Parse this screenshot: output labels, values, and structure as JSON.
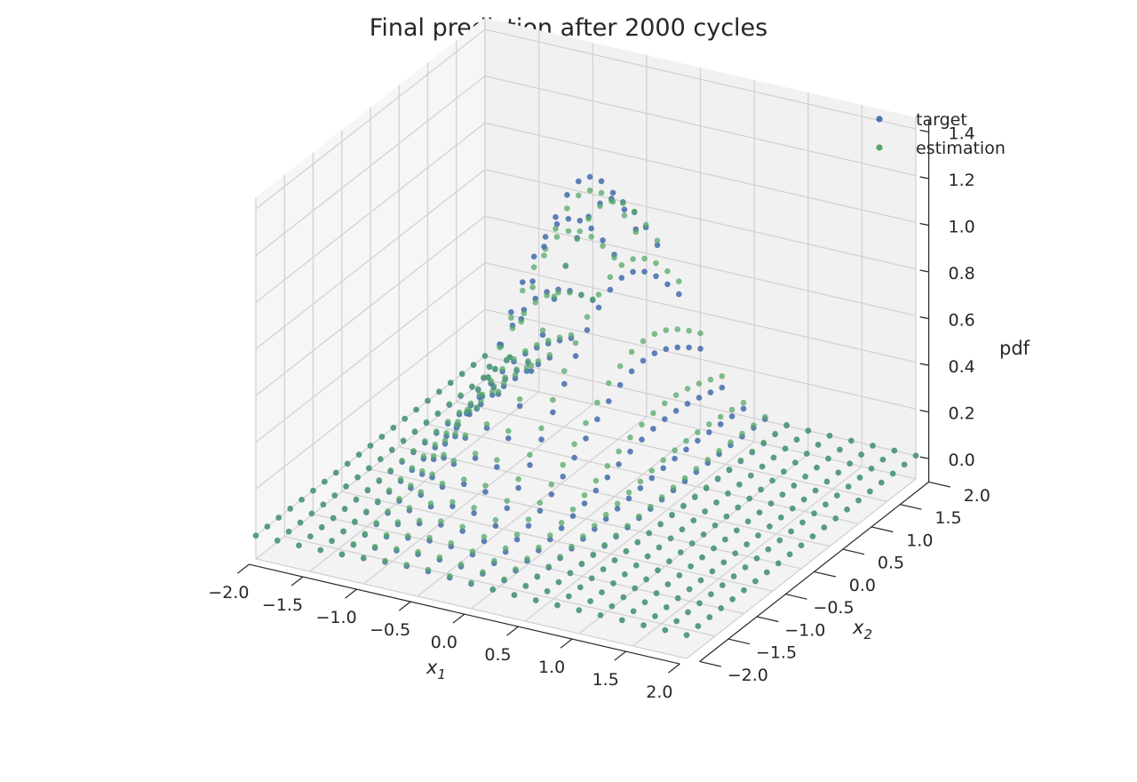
{
  "chart_data": {
    "type": "scatter3d",
    "title": "Final prediction after 2000 cycles",
    "xlabel": "x1",
    "xlabel_main": "x",
    "xlabel_sub": "1",
    "ylabel": "x2",
    "ylabel_main": "x",
    "ylabel_sub": "2",
    "zlabel": "pdf",
    "xlim": [
      -2.0,
      2.0
    ],
    "ylim": [
      -2.0,
      2.0
    ],
    "zlim": [
      -0.1,
      1.45
    ],
    "x_ticks": [
      -2.0,
      -1.5,
      -1.0,
      -0.5,
      0.0,
      0.5,
      1.0,
      1.5,
      2.0
    ],
    "x_tick_labels": [
      "−2.0",
      "−1.5",
      "−1.0",
      "−0.5",
      "0.0",
      "0.5",
      "1.0",
      "1.5",
      "2.0"
    ],
    "y_ticks": [
      -2.0,
      -1.5,
      -1.0,
      -0.5,
      0.0,
      0.5,
      1.0,
      1.5,
      2.0
    ],
    "y_tick_labels": [
      "−2.0",
      "−1.5",
      "−1.0",
      "−0.5",
      "0.0",
      "0.5",
      "1.0",
      "1.5",
      "2.0"
    ],
    "z_ticks": [
      0.0,
      0.2,
      0.4,
      0.6,
      0.8,
      1.0,
      1.2,
      1.4
    ],
    "z_tick_labels": [
      "0.0",
      "0.2",
      "0.4",
      "0.6",
      "0.8",
      "1.0",
      "1.2",
      "1.4"
    ],
    "grid": true,
    "legend_position": "top-right",
    "series": [
      {
        "name": "target",
        "color": "#4c72b0",
        "surface": {
          "grid_x": {
            "start": -2.0,
            "stop": 2.0,
            "count": 41
          },
          "grid_y": {
            "start": -2.0,
            "stop": 2.0,
            "count": 41
          },
          "ridge": {
            "x_center": -0.55,
            "x_spread": 0.38,
            "y_center": 1.0,
            "y_spread": 1.05,
            "peak": 1.1
          }
        }
      },
      {
        "name": "estimation",
        "color": "#55a868",
        "surface": {
          "grid_x": {
            "start": -2.0,
            "stop": 2.0,
            "count": 41
          },
          "grid_y": {
            "start": -2.0,
            "stop": 2.0,
            "count": 41
          },
          "ridge": {
            "x_center": -0.52,
            "x_spread": 0.41,
            "y_center": 1.0,
            "y_spread": 1.1,
            "peak": 1.05
          }
        }
      }
    ]
  },
  "legend": {
    "items": [
      {
        "label": "target",
        "color": "#4c72b0"
      },
      {
        "label": "estimation",
        "color": "#55a868"
      }
    ]
  }
}
